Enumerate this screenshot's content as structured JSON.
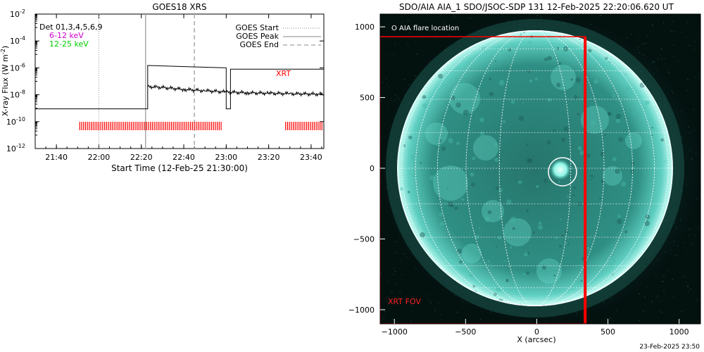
{
  "goes": {
    "title": "GOES18 XRS",
    "ylabel_main": "X-ray Flux (W m",
    "ylabel_sup": "-2",
    "ylabel_tail": ")",
    "xlabel": "Start Time (12-Feb-25 21:30:00)",
    "dets_label": "Det 01,3,4,5,6,9",
    "band1_label": "6-12 keV",
    "band2_label": "12-25 keV",
    "xrt_label": "XRT",
    "legend": {
      "start": "GOES Start",
      "peak": "GOES Peak",
      "end": "GOES End"
    },
    "colors": {
      "band1": "#cc00cc",
      "band2": "#00cc00",
      "xrt": "#ff0000",
      "peak": "#aaaaaa"
    }
  },
  "chart_data": [
    {
      "type": "line",
      "title": "GOES18 XRS",
      "xlabel": "Start Time (12-Feb-25 21:30:00)",
      "ylabel": "X-ray Flux (W m^-2)",
      "y_scale": "log",
      "ylim": [
        1e-12,
        0.01
      ],
      "y_ticks": [
        "10^-2",
        "10^-4",
        "10^-6",
        "10^-8",
        "10^-10",
        "10^-12"
      ],
      "xlim_min": [
        0,
        136
      ],
      "x_ticks": [
        "21:40",
        "22:00",
        "22:20",
        "22:40",
        "23:00",
        "23:20",
        "23:40"
      ],
      "x_tick_min": [
        10,
        30,
        50,
        70,
        90,
        110,
        130
      ],
      "markers_min": {
        "goes_start": 30,
        "goes_peak": 52,
        "goes_end": 75
      },
      "series": [
        {
          "name": "Det 01,3,4,5,6,9",
          "color": "#000000",
          "points": [
            [
              0,
              9e-10
            ],
            [
              53,
              9e-10
            ],
            [
              53,
              1.5e-06
            ],
            [
              90,
              1e-06
            ],
            [
              90,
              9e-10
            ],
            [
              92,
              9e-10
            ],
            [
              92,
              8e-07
            ],
            [
              136,
              8e-07
            ]
          ]
        },
        {
          "name": "XRT",
          "color": "#000000",
          "style": "noisy",
          "points": [
            [
              53,
              4e-08
            ],
            [
              60,
              3.5e-08
            ],
            [
              70,
              2.5e-08
            ],
            [
              80,
              2e-08
            ],
            [
              90,
              1.6e-08
            ],
            [
              100,
              1.4e-08
            ],
            [
              110,
              1.3e-08
            ],
            [
              120,
              1.2e-08
            ],
            [
              136,
              1.1e-08
            ]
          ]
        }
      ],
      "xrt_coverage_min": [
        [
          21,
          88
        ],
        [
          118,
          136
        ]
      ]
    },
    {
      "type": "scatter",
      "title": "SDO/AIA AIA_1 SDO/JSOC-SDP 131 12-Feb-2025 22:20:06.620 UT",
      "xlabel": "X (arcsec)",
      "ylabel": "",
      "xlim": [
        -1100,
        1150
      ],
      "ylim": [
        -1100,
        1090
      ],
      "x_ticks": [
        -1000,
        -500,
        0,
        500,
        1000
      ],
      "y_ticks": [
        -1000,
        -500,
        0,
        500,
        1000
      ],
      "solar_radius_arcsec": 970,
      "flare_location": {
        "x": 180,
        "y": 0
      },
      "xrt_fov": {
        "x_min": -1100,
        "x_max": 340,
        "y_min": -1100,
        "y_max": 930
      }
    }
  ],
  "aia": {
    "title": "SDO/AIA AIA_1 SDO/JSOC-SDP 131 12-Feb-2025 22:20:06.620 UT",
    "xlabel": "X (arcsec)",
    "flare_legend": "O AIA flare location",
    "fov_label": "XRT FOV",
    "footer_date": "23-Feb-2025 23:50",
    "colors": {
      "disk": "#34b3a6",
      "corona": "#0e2a26",
      "fov": "#ff0000"
    }
  }
}
